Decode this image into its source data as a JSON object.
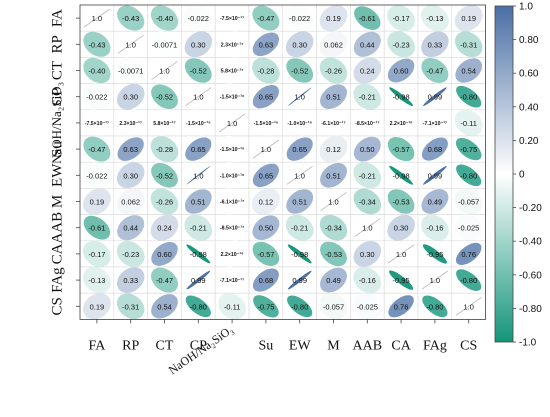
{
  "chart_data": {
    "type": "heatmap",
    "subtype": "correlation-ellipse",
    "variables": [
      "FA",
      "RP",
      "CT",
      "CP",
      "NaOH/Na2SiO3",
      "Su",
      "EW",
      "M",
      "AAB",
      "CA",
      "FAg",
      "CS"
    ],
    "variable_labels": [
      "FA",
      "RP",
      "CT",
      "CP",
      "NaOH/Na₂SiO₃",
      "Su",
      "EW",
      "M",
      "AAB",
      "CA",
      "FAg",
      "CS"
    ],
    "matrix": [
      [
        1.0,
        -0.43,
        -0.4,
        -0.022,
        -7.5e-17,
        -0.47,
        -0.022,
        0.19,
        -0.61,
        -0.17,
        -0.13,
        0.19
      ],
      [
        -0.43,
        1.0,
        -0.0071,
        0.3,
        2.3e-17,
        0.63,
        0.3,
        0.062,
        0.44,
        -0.23,
        0.33,
        -0.31
      ],
      [
        -0.4,
        -0.0071,
        1.0,
        -0.52,
        5.8e-17,
        -0.28,
        -0.52,
        -0.26,
        0.24,
        0.6,
        -0.47,
        0.54
      ],
      [
        -0.022,
        0.3,
        -0.52,
        1.0,
        -1.5e-16,
        0.65,
        1.0,
        0.51,
        -0.21,
        -0.98,
        0.99,
        -0.8
      ],
      [
        -7.5e-17,
        2.3e-17,
        5.8e-17,
        -1.5e-16,
        1.0,
        -1.5e-16,
        -1e-16,
        -6.1e-17,
        -8.5e-17,
        2.2e-16,
        -7.1e-17,
        -0.11
      ],
      [
        -0.47,
        0.63,
        -0.28,
        0.65,
        -1.5e-16,
        1.0,
        0.65,
        0.12,
        0.5,
        -0.57,
        0.68,
        -0.75
      ],
      [
        -0.022,
        0.3,
        -0.52,
        1.0,
        -1e-16,
        0.65,
        1.0,
        0.51,
        -0.21,
        -0.98,
        0.99,
        -0.8
      ],
      [
        0.19,
        0.062,
        -0.26,
        0.51,
        -6.1e-17,
        0.12,
        0.51,
        1.0,
        -0.34,
        -0.53,
        0.49,
        -0.057
      ],
      [
        -0.61,
        0.44,
        0.24,
        -0.21,
        -8.5e-17,
        0.5,
        -0.21,
        -0.34,
        1.0,
        0.3,
        -0.16,
        -0.025
      ],
      [
        -0.17,
        -0.23,
        0.6,
        -0.98,
        2.2e-16,
        -0.57,
        -0.98,
        -0.53,
        0.3,
        1.0,
        -0.95,
        0.76
      ],
      [
        -0.13,
        0.33,
        -0.47,
        0.99,
        -7.1e-17,
        0.68,
        0.99,
        0.49,
        -0.16,
        -0.95,
        1.0,
        -0.8
      ],
      [
        0.19,
        -0.31,
        0.54,
        -0.8,
        -0.11,
        -0.75,
        -0.8,
        -0.057,
        -0.025,
        0.76,
        -0.8,
        1.0
      ]
    ],
    "labels": [
      [
        "1.0",
        "-0.43",
        "-0.40",
        "-0.022",
        "-7.5×10⁻¹⁷",
        "-0.47",
        "-0.022",
        "0.19",
        "-0.61",
        "-0.17",
        "-0.13",
        "0.19"
      ],
      [
        "-0.43",
        "1.0",
        "-0.0071",
        "0.30",
        "2.3×10⁻¹⁷",
        "0.63",
        "0.30",
        "0.062",
        "0.44",
        "-0.23",
        "0.33",
        "-0.31"
      ],
      [
        "-0.40",
        "-0.0071",
        "1.0",
        "-0.52",
        "5.8×10⁻¹⁷",
        "-0.28",
        "-0.52",
        "-0.26",
        "0.24",
        "0.60",
        "-0.47",
        "0.54"
      ],
      [
        "-0.022",
        "0.30",
        "-0.52",
        "1.0",
        "-1.5×10⁻¹⁶",
        "0.65",
        "1.0",
        "0.51",
        "-0.21",
        "-0.98",
        "0.99",
        "-0.80"
      ],
      [
        "-7.5×10⁻¹⁷",
        "2.3×10⁻¹⁷",
        "5.8×10⁻¹⁷",
        "-1.5×10⁻¹⁶",
        "1.0",
        "-1.5×10⁻¹⁶",
        "-1.0×10⁻¹⁶",
        "-6.1×10⁻¹⁷",
        "-8.5×10⁻¹⁷",
        "2.2×10⁻¹⁶",
        "-7.1×10⁻¹⁷",
        "-0.11"
      ],
      [
        "-0.47",
        "0.63",
        "-0.28",
        "0.65",
        "-1.5×10⁻¹⁶",
        "1.0",
        "0.65",
        "0.12",
        "0.50",
        "-0.57",
        "0.68",
        "-0.75"
      ],
      [
        "-0.022",
        "0.30",
        "-0.52",
        "1.0",
        "-1.0×10⁻¹⁶",
        "0.65",
        "1.0",
        "0.51",
        "-0.21",
        "-0.98",
        "0.99",
        "-0.80"
      ],
      [
        "0.19",
        "0.062",
        "-0.26",
        "0.51",
        "-6.1×10⁻¹⁷",
        "0.12",
        "0.51",
        "1.0",
        "-0.34",
        "-0.53",
        "0.49",
        "-0.057"
      ],
      [
        "-0.61",
        "0.44",
        "0.24",
        "-0.21",
        "-8.5×10⁻¹⁷",
        "0.50",
        "-0.21",
        "-0.34",
        "1.0",
        "0.30",
        "-0.16",
        "-0.025"
      ],
      [
        "-0.17",
        "-0.23",
        "0.60",
        "-0.98",
        "2.2×10⁻¹⁶",
        "-0.57",
        "-0.98",
        "-0.53",
        "0.30",
        "1.0",
        "-0.95",
        "0.76"
      ],
      [
        "-0.13",
        "0.33",
        "-0.47",
        "0.99",
        "-7.1×10⁻¹⁷",
        "0.68",
        "0.99",
        "0.49",
        "-0.16",
        "-0.95",
        "1.0",
        "-0.80"
      ],
      [
        "0.19",
        "-0.31",
        "0.54",
        "-0.80",
        "-0.11",
        "-0.75",
        "-0.80",
        "-0.057",
        "-0.025",
        "0.76",
        "-0.80",
        "1.0"
      ]
    ],
    "colorbar": {
      "range": [
        -1.0,
        1.0
      ],
      "ticks": [
        1.0,
        0.8,
        0.6,
        0.4,
        0.2,
        0.0,
        -0.2,
        -0.4,
        -0.6,
        -0.8,
        -1.0
      ],
      "tick_labels": [
        "1.0",
        "0.80",
        "0.60",
        "0.40",
        "0.20",
        "0",
        "-0.20",
        "-0.40",
        "-0.60",
        "-0.80",
        "-1.0"
      ],
      "color_positive": "#4a6fa5",
      "color_negative": "#14957a",
      "color_zero": "#ffffff"
    },
    "grid": true,
    "legend": "colorbar-right"
  }
}
